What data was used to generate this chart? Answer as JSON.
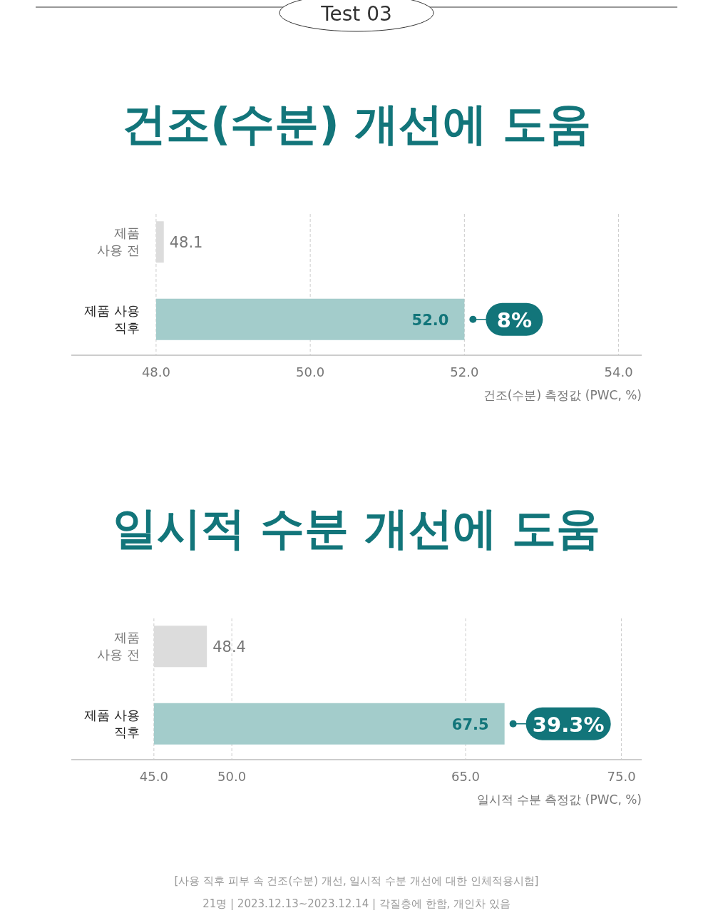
{
  "chart_data": [
    {
      "type": "bar",
      "orientation": "horizontal",
      "title": "건조(수분) 개선에 도움",
      "xlabel": "건조(수분) 측정값 (PWC, %)",
      "categories": [
        "제품\n사용 전",
        "제품 사용\n직후"
      ],
      "values": [
        0.1,
        4.0
      ],
      "base": [
        48,
        48
      ],
      "value_labels": [
        "48.1",
        "52.0"
      ],
      "colors": [
        "#dcdcdc",
        "#a3cccb"
      ],
      "xlim": [
        46.9,
        54.3
      ],
      "xticks": [
        {
          "value": 48,
          "label": "48.0"
        },
        {
          "value": 50,
          "label": "50.0"
        },
        {
          "value": 52,
          "label": "52.0"
        },
        {
          "value": 54,
          "label": "54.0"
        }
      ],
      "grid": "x",
      "annotations": [
        "Test 03",
        {
          "text": "8%",
          "x": 52.0,
          "y": "제품 사용\n직후"
        }
      ]
    },
    {
      "type": "bar",
      "orientation": "horizontal",
      "title": "일시적 수분 개선에 도움",
      "xlabel": "일시적 수분 측정값 (PWC, %)",
      "categories": [
        "제품\n사용 전",
        "제품 사용\n직후"
      ],
      "values": [
        3.4,
        22.5
      ],
      "base": [
        45,
        45
      ],
      "value_labels": [
        "48.4",
        "67.5"
      ],
      "colors": [
        "#dcdcdc",
        "#a3cccb"
      ],
      "xlim": [
        39.7,
        76.3
      ],
      "xticks": [
        {
          "value": 45,
          "label": "45.0"
        },
        {
          "value": 50,
          "label": "50.0"
        },
        {
          "value": 65,
          "label": "65.0"
        },
        {
          "value": 75,
          "label": "75.0"
        }
      ],
      "grid": "x",
      "annotations": [
        {
          "text": "39.3%",
          "x": 67.5,
          "y": "제품 사용\n직후"
        },
        "[사용 직후 피부 속 건조(수분) 개선, 일시적 수분 개선에 대한 인체적용시험]",
        "21명  |  2023.12.13~2023.12.14  |  각질층에 한함, 개인차 있음"
      ]
    }
  ]
}
